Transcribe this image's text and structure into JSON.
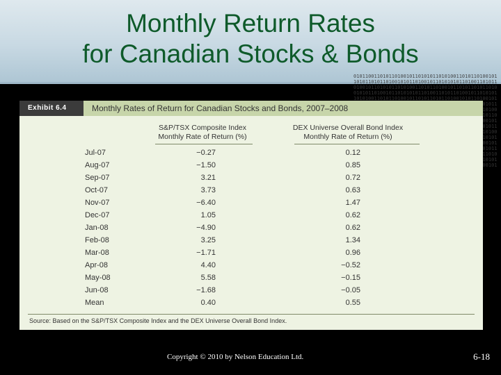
{
  "slide": {
    "title_line1": "Monthly Return Rates",
    "title_line2": "for Canadian Stocks & Bonds",
    "footer": "Copyright © 2010 by Nelson Education Ltd.",
    "page_number": "6-18"
  },
  "exhibit": {
    "label": "Exhibit 6.4",
    "caption": "Monthly Rates of Return for Canadian Stocks and Bonds, 2007–2008",
    "col_stock_line1": "S&P/TSX Composite Index",
    "col_stock_line2": "Monthly Rate of Return (%)",
    "col_bond_line1": "DEX Universe Overall Bond Index",
    "col_bond_line2": "Monthly Rate of Return (%)",
    "rows": [
      {
        "month": "Jul-07",
        "stock": "−0.27",
        "bond": "0.12"
      },
      {
        "month": "Aug-07",
        "stock": "−1.50",
        "bond": "0.85"
      },
      {
        "month": "Sep-07",
        "stock": "3.21",
        "bond": "0.72"
      },
      {
        "month": "Oct-07",
        "stock": "3.73",
        "bond": "0.63"
      },
      {
        "month": "Nov-07",
        "stock": "−6.40",
        "bond": "1.47"
      },
      {
        "month": "Dec-07",
        "stock": "1.05",
        "bond": "0.62"
      },
      {
        "month": "Jan-08",
        "stock": "−4.90",
        "bond": "0.62"
      },
      {
        "month": "Feb-08",
        "stock": "3.25",
        "bond": "1.34"
      },
      {
        "month": "Mar-08",
        "stock": "−1.71",
        "bond": "0.96"
      },
      {
        "month": "Apr-08",
        "stock": "4.40",
        "bond": "−0.52"
      },
      {
        "month": "May-08",
        "stock": "5.58",
        "bond": "−0.15"
      },
      {
        "month": "Jun-08",
        "stock": "−1.68",
        "bond": "−0.05"
      },
      {
        "month": "Mean",
        "stock": "0.40",
        "bond": "0.55"
      }
    ],
    "source": "Source: Based on the S&P/TSX Composite Index and the DEX Universe Overall Bond Index."
  },
  "colors": {
    "title_text": "#0e5a2a",
    "panel_bg": "#eef3e3",
    "header_band": "#c7d5aa",
    "label_bg": "#3b3b3b"
  }
}
